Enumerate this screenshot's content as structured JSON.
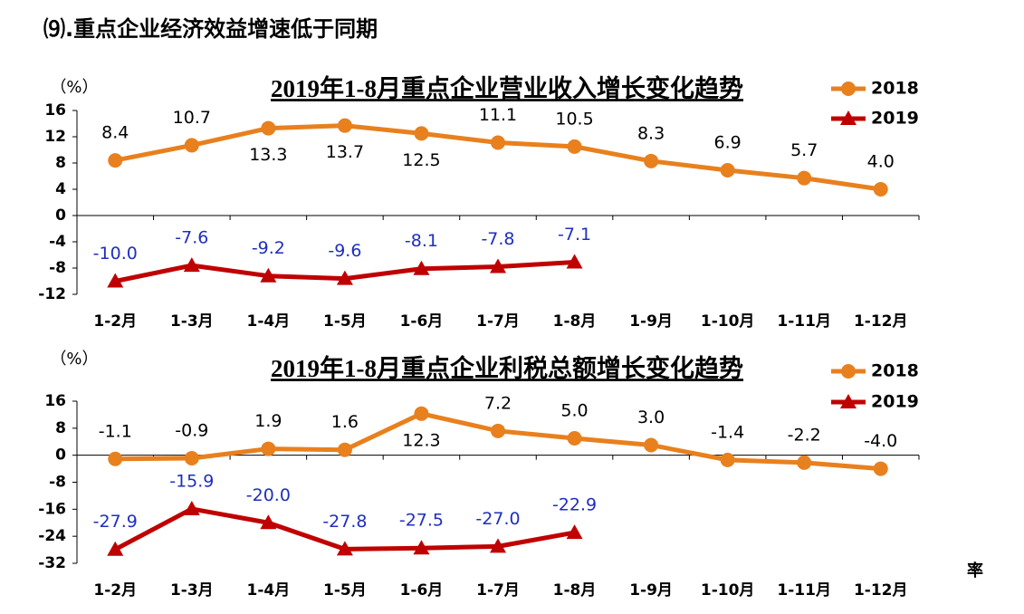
{
  "heading": "⑼.重点企业经济效益增速低于同期",
  "note": "率",
  "chart_data": [
    {
      "type": "line",
      "title": "2019年1-8月重点企业营业收入增长变化趋势",
      "y_label": "（%）",
      "categories": [
        "1-2月",
        "1-3月",
        "1-4月",
        "1-5月",
        "1-6月",
        "1-7月",
        "1-8月",
        "1-9月",
        "1-10月",
        "1-11月",
        "1-12月"
      ],
      "ylim": [
        -12,
        16
      ],
      "yticks": [
        16,
        12,
        8,
        4,
        0,
        -4,
        -8,
        -12
      ],
      "legend": "upper right",
      "series": [
        {
          "name": "2018",
          "color": "#e8801e",
          "marker": "circle",
          "label_color": "#000000",
          "values": [
            8.4,
            10.7,
            13.3,
            13.7,
            12.5,
            11.1,
            10.5,
            8.3,
            6.9,
            5.7,
            4.0
          ],
          "value_labels": [
            "8.4",
            "10.7",
            "13.3",
            "13.7",
            "12.5",
            "11.1",
            "10.5",
            "8.3",
            "6.9",
            "5.7",
            "4.0"
          ]
        },
        {
          "name": "2019",
          "color": "#c00000",
          "marker": "triangle",
          "label_color": "#1f2fbf",
          "values": [
            -10.0,
            -7.6,
            -9.2,
            -9.6,
            -8.1,
            -7.8,
            -7.1,
            null,
            null,
            null,
            null
          ],
          "value_labels": [
            "-10.0",
            "-7.6",
            "-9.2",
            "-9.6",
            "-8.1",
            "-7.8",
            "-7.1",
            null,
            null,
            null,
            null
          ]
        }
      ]
    },
    {
      "type": "line",
      "title": "2019年1-8月重点企业利税总额增长变化趋势",
      "y_label": "（%）",
      "categories": [
        "1-2月",
        "1-3月",
        "1-4月",
        "1-5月",
        "1-6月",
        "1-7月",
        "1-8月",
        "1-9月",
        "1-10月",
        "1-11月",
        "1-12月"
      ],
      "ylim": [
        -32,
        16
      ],
      "yticks": [
        16,
        8,
        0,
        -8,
        -16,
        -24,
        -32
      ],
      "legend": "upper right",
      "series": [
        {
          "name": "2018",
          "color": "#e8801e",
          "marker": "circle",
          "label_color": "#000000",
          "values": [
            -1.1,
            -0.9,
            1.9,
            1.6,
            12.3,
            7.2,
            5.0,
            3.0,
            -1.4,
            -2.2,
            -4.0
          ],
          "value_labels": [
            "-1.1",
            "-0.9",
            "1.9",
            "1.6",
            "12.3",
            "7.2",
            "5.0",
            "3.0",
            "-1.4",
            "-2.2",
            "-4.0"
          ]
        },
        {
          "name": "2019",
          "color": "#c00000",
          "marker": "triangle",
          "label_color": "#1f2fbf",
          "values": [
            -27.9,
            -15.9,
            -20.0,
            -27.8,
            -27.5,
            -27.0,
            -22.9,
            null,
            null,
            null,
            null
          ],
          "value_labels": [
            "-27.9",
            "-15.9",
            "-20.0",
            "-27.8",
            "-27.5",
            "-27.0",
            "-22.9",
            null,
            null,
            null,
            null
          ]
        }
      ]
    }
  ]
}
